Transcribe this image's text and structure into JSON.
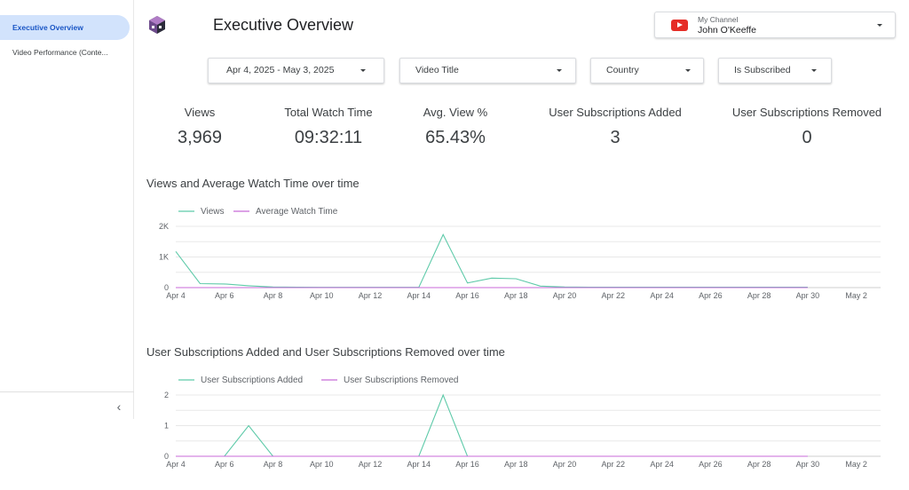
{
  "sidebar": {
    "items": [
      {
        "label": "Executive Overview",
        "active": true
      },
      {
        "label": "Video Performance (Conte..."
      }
    ],
    "collapse_icon": "‹"
  },
  "header": {
    "title": "Executive Overview",
    "channel_label": "My Channel",
    "channel_name": "John O'Keeffe",
    "channel_icon": "youtube-icon"
  },
  "filters": {
    "date_range": "Apr 4, 2025 - May 3, 2025",
    "video_title": "Video Title",
    "country": "Country",
    "is_subscribed": "Is Subscribed"
  },
  "kpis": [
    {
      "label": "Views",
      "value": "3,969"
    },
    {
      "label": "Total Watch Time",
      "value": "09:32:11"
    },
    {
      "label": "Avg. View %",
      "value": "65.43%"
    },
    {
      "label": "User Subscriptions Added",
      "value": "3"
    },
    {
      "label": "User Subscriptions Removed",
      "value": "0"
    }
  ],
  "colors": {
    "series_teal": "#5ecaa9",
    "series_purple": "#c86ad8",
    "active_nav_bg": "#d2e3fc",
    "active_nav_text": "#1a56c5",
    "grid": "#e8e8e8"
  },
  "chart_data": [
    {
      "type": "line",
      "title": "Views and Average Watch Time over time",
      "x": [
        "Apr 4",
        "Apr 5",
        "Apr 6",
        "Apr 7",
        "Apr 8",
        "Apr 9",
        "Apr 10",
        "Apr 11",
        "Apr 12",
        "Apr 13",
        "Apr 14",
        "Apr 15",
        "Apr 16",
        "Apr 17",
        "Apr 18",
        "Apr 19",
        "Apr 20",
        "Apr 21",
        "Apr 22",
        "Apr 23",
        "Apr 24",
        "Apr 25",
        "Apr 26",
        "Apr 27",
        "Apr 28",
        "Apr 29",
        "Apr 30",
        "May 1",
        "May 2",
        "May 3"
      ],
      "x_tick_labels": [
        "Apr 4",
        "Apr 6",
        "Apr 8",
        "Apr 10",
        "Apr 12",
        "Apr 14",
        "Apr 16",
        "Apr 18",
        "Apr 20",
        "Apr 22",
        "Apr 24",
        "Apr 26",
        "Apr 28",
        "Apr 30",
        "May 2"
      ],
      "y_tick_labels": [
        "0",
        "1K",
        "2K"
      ],
      "ylim": [
        0,
        2000
      ],
      "legend_position": "top-left",
      "grid": true,
      "series": [
        {
          "name": "Views",
          "color": "#5ecaa9",
          "values": [
            1180,
            130,
            120,
            60,
            20,
            15,
            10,
            10,
            10,
            10,
            10,
            1730,
            150,
            310,
            290,
            50,
            20,
            15,
            15,
            15,
            15,
            15,
            15,
            15,
            15,
            15,
            15,
            null,
            null,
            null
          ]
        },
        {
          "name": "Average Watch Time",
          "color": "#c86ad8",
          "values": [
            0,
            0,
            0,
            0,
            0,
            0,
            0,
            0,
            0,
            0,
            0,
            0,
            0,
            0,
            0,
            0,
            0,
            0,
            0,
            0,
            0,
            0,
            0,
            0,
            0,
            0,
            0,
            null,
            null,
            null
          ]
        }
      ]
    },
    {
      "type": "line",
      "title": "User Subscriptions Added and User Subscriptions Removed over time",
      "x": [
        "Apr 4",
        "Apr 5",
        "Apr 6",
        "Apr 7",
        "Apr 8",
        "Apr 9",
        "Apr 10",
        "Apr 11",
        "Apr 12",
        "Apr 13",
        "Apr 14",
        "Apr 15",
        "Apr 16",
        "Apr 17",
        "Apr 18",
        "Apr 19",
        "Apr 20",
        "Apr 21",
        "Apr 22",
        "Apr 23",
        "Apr 24",
        "Apr 25",
        "Apr 26",
        "Apr 27",
        "Apr 28",
        "Apr 29",
        "Apr 30",
        "May 1",
        "May 2",
        "May 3"
      ],
      "x_tick_labels": [
        "Apr 4",
        "Apr 6",
        "Apr 8",
        "Apr 10",
        "Apr 12",
        "Apr 14",
        "Apr 16",
        "Apr 18",
        "Apr 20",
        "Apr 22",
        "Apr 24",
        "Apr 26",
        "Apr 28",
        "Apr 30",
        "May 2"
      ],
      "y_tick_labels": [
        "0",
        "1",
        "2"
      ],
      "ylim": [
        0,
        2
      ],
      "legend_position": "top-left",
      "grid": true,
      "series": [
        {
          "name": "User Subscriptions Added",
          "color": "#5ecaa9",
          "values": [
            0,
            0,
            0,
            1,
            0,
            0,
            0,
            0,
            0,
            0,
            0,
            2,
            0,
            0,
            0,
            0,
            0,
            0,
            0,
            0,
            0,
            0,
            0,
            0,
            0,
            0,
            0,
            null,
            null,
            null
          ]
        },
        {
          "name": "User Subscriptions Removed",
          "color": "#c86ad8",
          "values": [
            0,
            0,
            0,
            0,
            0,
            0,
            0,
            0,
            0,
            0,
            0,
            0,
            0,
            0,
            0,
            0,
            0,
            0,
            0,
            0,
            0,
            0,
            0,
            0,
            0,
            0,
            0,
            null,
            null,
            null
          ]
        }
      ]
    }
  ]
}
